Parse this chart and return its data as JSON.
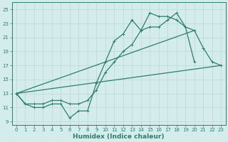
{
  "xlabel": "Humidex (Indice chaleur)",
  "bg_color": "#d4ecec",
  "grid_color": "#b8d8d8",
  "line_color": "#2e7d6e",
  "xlim": [
    -0.5,
    23.5
  ],
  "ylim": [
    8.5,
    26.0
  ],
  "xticks": [
    0,
    1,
    2,
    3,
    4,
    5,
    6,
    7,
    8,
    9,
    10,
    11,
    12,
    13,
    14,
    15,
    16,
    17,
    18,
    19,
    20,
    21,
    22,
    23
  ],
  "yticks": [
    9,
    11,
    13,
    15,
    17,
    19,
    21,
    23,
    25
  ],
  "line1_x": [
    0,
    1,
    2,
    3,
    4,
    5,
    6,
    7,
    8,
    9,
    10,
    11,
    12,
    13,
    14,
    15,
    16,
    17,
    18,
    19,
    20
  ],
  "line1_y": [
    13,
    11.5,
    11,
    11,
    11.5,
    11.5,
    9.5,
    10.5,
    10.5,
    14.5,
    17.5,
    20.5,
    21.5,
    23.5,
    22.0,
    24.5,
    24.0,
    24.0,
    23.5,
    22.5,
    17.5
  ],
  "line2_x": [
    0,
    1,
    2,
    3,
    4,
    5,
    6,
    7,
    8,
    9,
    10,
    11,
    12,
    13,
    14,
    15,
    16,
    17,
    18,
    19,
    20,
    21,
    22,
    23
  ],
  "line2_y": [
    13,
    11.5,
    11.5,
    11.5,
    12,
    12,
    11.5,
    11.5,
    12,
    13.5,
    16,
    17.5,
    19,
    20,
    22,
    22.5,
    22.5,
    23.5,
    24.5,
    22.5,
    22,
    19.5,
    17.5,
    17.0
  ],
  "line3_x": [
    0,
    23
  ],
  "line3_y": [
    13,
    17
  ],
  "line4_x": [
    0,
    20
  ],
  "line4_y": [
    13,
    22
  ]
}
